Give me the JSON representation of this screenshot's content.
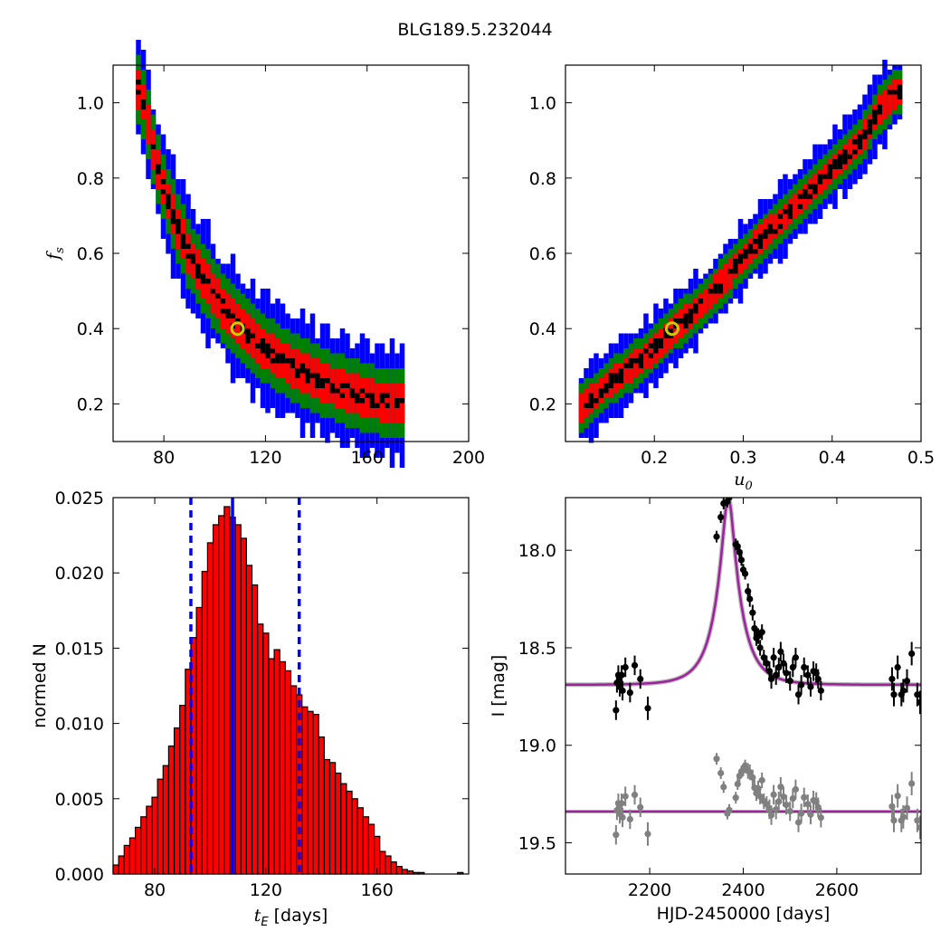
{
  "title": "BLG189.5.232044",
  "colors": {
    "blue": "#0000ff",
    "green": "#008000",
    "red": "#ff0000",
    "black": "#000000",
    "yellow": "#cccc00",
    "purple": "#a020a0",
    "gray": "#808080"
  },
  "chart_data": [
    {
      "id": "fs_vs_tE",
      "type": "heatmap",
      "xlabel": "",
      "ylabel": "f_s",
      "xlim": [
        60,
        200
      ],
      "ylim": [
        0.1,
        1.1
      ],
      "xticks": [
        "80",
        "120",
        "160",
        "200"
      ],
      "yticks": [
        "0.2",
        "0.4",
        "0.6",
        "0.8",
        "1.0"
      ],
      "confidence_levels": [
        "black",
        "red",
        "green",
        "blue"
      ],
      "ridge": [
        [
          69,
          1.04
        ],
        [
          72,
          0.98
        ],
        [
          74,
          0.9
        ],
        [
          77,
          0.82
        ],
        [
          80,
          0.75
        ],
        [
          84,
          0.68
        ],
        [
          88,
          0.61
        ],
        [
          92,
          0.56
        ],
        [
          97,
          0.51
        ],
        [
          102,
          0.46
        ],
        [
          108,
          0.41
        ],
        [
          114,
          0.37
        ],
        [
          120,
          0.34
        ],
        [
          127,
          0.31
        ],
        [
          135,
          0.28
        ],
        [
          143,
          0.255
        ],
        [
          152,
          0.23
        ],
        [
          162,
          0.21
        ],
        [
          172,
          0.2
        ]
      ],
      "best_fit": {
        "x": 109,
        "y": 0.4
      }
    },
    {
      "id": "fs_vs_u0",
      "type": "heatmap",
      "xlabel": "u_0",
      "ylabel": "",
      "xlim": [
        0.1,
        0.5
      ],
      "ylim": [
        0.1,
        1.1
      ],
      "xticks": [
        "0.2",
        "0.3",
        "0.4",
        "0.5"
      ],
      "yticks": [
        "0.2",
        "0.4",
        "0.6",
        "0.8",
        "1.0"
      ],
      "ridge": [
        [
          0.115,
          0.19
        ],
        [
          0.15,
          0.26
        ],
        [
          0.19,
          0.33
        ],
        [
          0.22,
          0.4
        ],
        [
          0.25,
          0.46
        ],
        [
          0.28,
          0.54
        ],
        [
          0.31,
          0.62
        ],
        [
          0.34,
          0.69
        ],
        [
          0.37,
          0.76
        ],
        [
          0.4,
          0.83
        ],
        [
          0.43,
          0.9
        ],
        [
          0.45,
          0.98
        ],
        [
          0.47,
          1.03
        ]
      ],
      "best_fit": {
        "x": 0.22,
        "y": 0.4
      }
    },
    {
      "id": "tE_histogram",
      "type": "bar",
      "xlabel": "t_E [days]",
      "ylabel": "normed N",
      "xlim": [
        65,
        193
      ],
      "ylim": [
        0,
        0.025
      ],
      "xticks": [
        "80",
        "120",
        "160"
      ],
      "yticks": [
        "0.000",
        "0.005",
        "0.010",
        "0.015",
        "0.020",
        "0.025"
      ],
      "bin_width": 2,
      "bin_start": 65,
      "values": [
        0.0006,
        0.0012,
        0.0019,
        0.0024,
        0.0031,
        0.0038,
        0.0045,
        0.0051,
        0.0063,
        0.0072,
        0.0085,
        0.0097,
        0.0112,
        0.0136,
        0.0157,
        0.0177,
        0.0201,
        0.022,
        0.0232,
        0.0238,
        0.0244,
        0.0237,
        0.0232,
        0.0223,
        0.0205,
        0.0192,
        0.0166,
        0.016,
        0.0143,
        0.0149,
        0.0141,
        0.0135,
        0.0125,
        0.0119,
        0.0111,
        0.0108,
        0.0106,
        0.0091,
        0.0076,
        0.0074,
        0.0067,
        0.006,
        0.0055,
        0.005,
        0.0044,
        0.0038,
        0.0033,
        0.0025,
        0.0015,
        0.0012,
        0.0008,
        0.0005,
        0.0003,
        0.0002,
        0.0001,
        0.0001,
        0.0,
        0.0,
        0.0,
        0.0,
        0.0,
        0.0,
        0.0001
      ],
      "median": 108,
      "lower": 93,
      "upper": 132
    },
    {
      "id": "light_curve",
      "type": "scatter",
      "xlabel": "HJD-2450000 [days]",
      "ylabel": "I [mag]",
      "xlim": [
        2020,
        2780
      ],
      "ylim": [
        19.66,
        17.73
      ],
      "xticks": [
        "2200",
        "2400",
        "2600"
      ],
      "yticks": [
        "18.0",
        "18.5",
        "19.0",
        "19.5"
      ],
      "model": {
        "baseline": 18.69,
        "peak_mag": 17.73,
        "t0": 2368,
        "tE": 109,
        "u0": 0.22
      },
      "residual_baseline": 19.34,
      "series": [
        {
          "name": "data",
          "color": "black",
          "points": [
            [
              2128,
              18.82,
              0.05
            ],
            [
              2130,
              18.68,
              0.05
            ],
            [
              2133,
              18.64,
              0.05
            ],
            [
              2136,
              18.7,
              0.05
            ],
            [
              2140,
              18.64,
              0.05
            ],
            [
              2142,
              18.72,
              0.05
            ],
            [
              2148,
              18.6,
              0.05
            ],
            [
              2158,
              18.73,
              0.05
            ],
            [
              2168,
              18.59,
              0.05
            ],
            [
              2180,
              18.66,
              0.05
            ],
            [
              2196,
              18.81,
              0.06
            ],
            [
              2343,
              17.93,
              0.03
            ],
            [
              2352,
              17.83,
              0.03
            ],
            [
              2358,
              17.76,
              0.03
            ],
            [
              2366,
              17.75,
              0.03
            ],
            [
              2370,
              17.73,
              0.03
            ],
            [
              2384,
              17.97,
              0.03
            ],
            [
              2388,
              17.98,
              0.03
            ],
            [
              2392,
              18.01,
              0.03
            ],
            [
              2396,
              18.05,
              0.03
            ],
            [
              2400,
              18.1,
              0.03
            ],
            [
              2404,
              18.12,
              0.03
            ],
            [
              2410,
              18.21,
              0.04
            ],
            [
              2414,
              18.25,
              0.04
            ],
            [
              2420,
              18.32,
              0.04
            ],
            [
              2424,
              18.4,
              0.04
            ],
            [
              2428,
              18.45,
              0.04
            ],
            [
              2432,
              18.44,
              0.04
            ],
            [
              2436,
              18.5,
              0.04
            ],
            [
              2440,
              18.42,
              0.04
            ],
            [
              2444,
              18.55,
              0.04
            ],
            [
              2450,
              18.58,
              0.04
            ],
            [
              2456,
              18.62,
              0.05
            ],
            [
              2460,
              18.66,
              0.05
            ],
            [
              2465,
              18.55,
              0.05
            ],
            [
              2470,
              18.64,
              0.05
            ],
            [
              2476,
              18.6,
              0.05
            ],
            [
              2480,
              18.52,
              0.05
            ],
            [
              2486,
              18.58,
              0.05
            ],
            [
              2492,
              18.63,
              0.05
            ],
            [
              2500,
              18.67,
              0.05
            ],
            [
              2506,
              18.6,
              0.05
            ],
            [
              2512,
              18.55,
              0.05
            ],
            [
              2518,
              18.74,
              0.05
            ],
            [
              2524,
              18.69,
              0.05
            ],
            [
              2530,
              18.6,
              0.05
            ],
            [
              2538,
              18.64,
              0.05
            ],
            [
              2544,
              18.7,
              0.05
            ],
            [
              2550,
              18.62,
              0.05
            ],
            [
              2556,
              18.63,
              0.05
            ],
            [
              2560,
              18.66,
              0.05
            ],
            [
              2566,
              18.72,
              0.05
            ],
            [
              2718,
              18.66,
              0.06
            ],
            [
              2722,
              18.74,
              0.06
            ],
            [
              2730,
              18.6,
              0.06
            ],
            [
              2738,
              18.74,
              0.06
            ],
            [
              2742,
              18.72,
              0.06
            ],
            [
              2750,
              18.67,
              0.06
            ],
            [
              2760,
              18.53,
              0.06
            ],
            [
              2772,
              18.74,
              0.06
            ],
            [
              2778,
              18.78,
              0.06
            ]
          ]
        },
        {
          "name": "residuals",
          "color": "gray",
          "points": []
        }
      ]
    }
  ]
}
